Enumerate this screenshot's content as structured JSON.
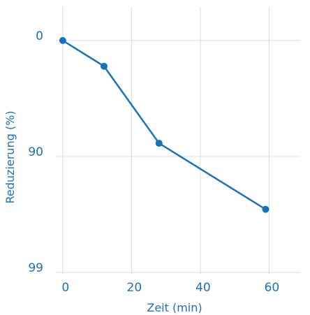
{
  "chart_data": {
    "type": "line",
    "xlabel": "Zeit (min)",
    "ylabel": "Reduzierung (%)",
    "x_ticks": [
      0,
      20,
      40,
      60
    ],
    "y_ticks": [
      0,
      90,
      99
    ],
    "y_scale": "log",
    "xlim": [
      -2,
      65
    ],
    "ylim": [
      0,
      99
    ],
    "grid": true,
    "series": [
      {
        "x": [
          0,
          12,
          28,
          59
        ],
        "y": [
          0,
          40,
          87,
          96.5
        ]
      }
    ],
    "colors": {
      "accent": "#1a73b8",
      "grid": "#dcdcdc"
    }
  }
}
